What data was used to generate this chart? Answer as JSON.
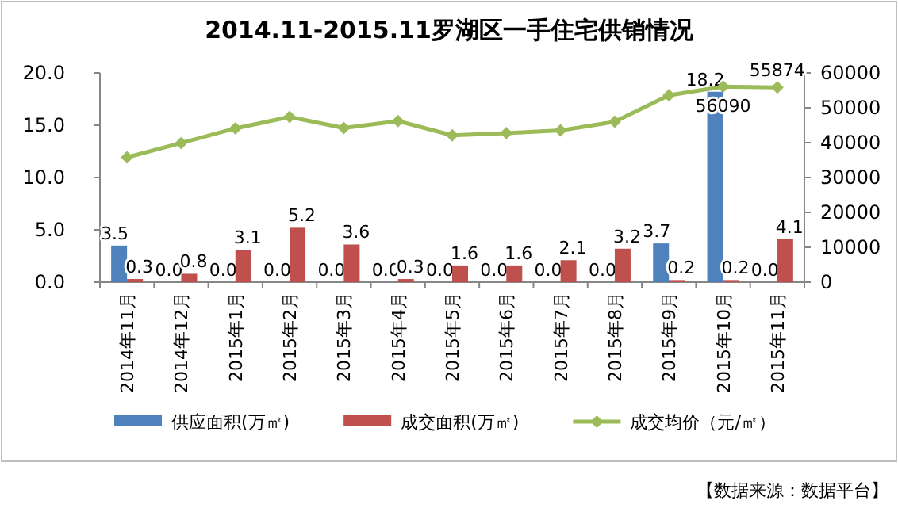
{
  "chart_data": {
    "type": "bar",
    "title": "2014.11-2015.11罗湖区一手住宅供销情况",
    "categories": [
      "2014年11月",
      "2014年12月",
      "2015年1月",
      "2015年2月",
      "2015年3月",
      "2015年4月",
      "2015年5月",
      "2015年6月",
      "2015年7月",
      "2015年8月",
      "2015年9月",
      "2015年10月",
      "2015年11月"
    ],
    "series": [
      {
        "name": "供应面积(万㎡)",
        "color": "#4f81bd",
        "values": [
          3.5,
          0,
          0,
          0,
          0,
          0,
          0,
          0,
          0,
          0,
          3.7,
          18.2,
          0
        ],
        "value_labels": [
          "3.5",
          "0.0",
          "0.0",
          "0.0",
          "0.0",
          "0.0",
          "0.0",
          "0.0",
          "0.0",
          "0.0",
          "3.7",
          "18.2",
          "0.0"
        ]
      },
      {
        "name": "成交面积(万㎡)",
        "color": "#c0504d",
        "values": [
          0.3,
          0.8,
          3.1,
          5.2,
          3.6,
          0.3,
          1.6,
          1.6,
          2.1,
          3.2,
          0.2,
          0.2,
          4.1
        ],
        "value_labels": [
          "0.3",
          "0.8",
          "3.1",
          "5.2",
          "3.6",
          "0.3",
          "1.6",
          "1.6",
          "2.1",
          "3.2",
          "0.2",
          "0.2",
          "4.1"
        ]
      },
      {
        "name": "成交均价（元/㎡）",
        "type": "line",
        "axis": "y2",
        "color": "#9bbb59",
        "values": [
          35800,
          39900,
          44100,
          47400,
          44200,
          46200,
          42100,
          42700,
          43500,
          46000,
          53600,
          56090,
          55874
        ],
        "value_labels": [
          null,
          null,
          null,
          null,
          null,
          null,
          null,
          null,
          null,
          null,
          null,
          "56090",
          "55874"
        ]
      }
    ],
    "ylim": [
      0,
      20
    ],
    "yticks": [
      {
        "value": 0,
        "label": "0.0"
      },
      {
        "value": 5,
        "label": "5.0"
      },
      {
        "value": 10,
        "label": "10.0"
      },
      {
        "value": 15,
        "label": "15.0"
      },
      {
        "value": 20,
        "label": "20.0"
      }
    ],
    "y2lim": [
      0,
      60000
    ],
    "y2ticks": [
      0,
      10000,
      20000,
      30000,
      40000,
      50000,
      60000
    ],
    "legend": "bottom",
    "marker": "diamond",
    "grid": false,
    "annotations": [
      "【数据来源：数据平台】"
    ]
  }
}
